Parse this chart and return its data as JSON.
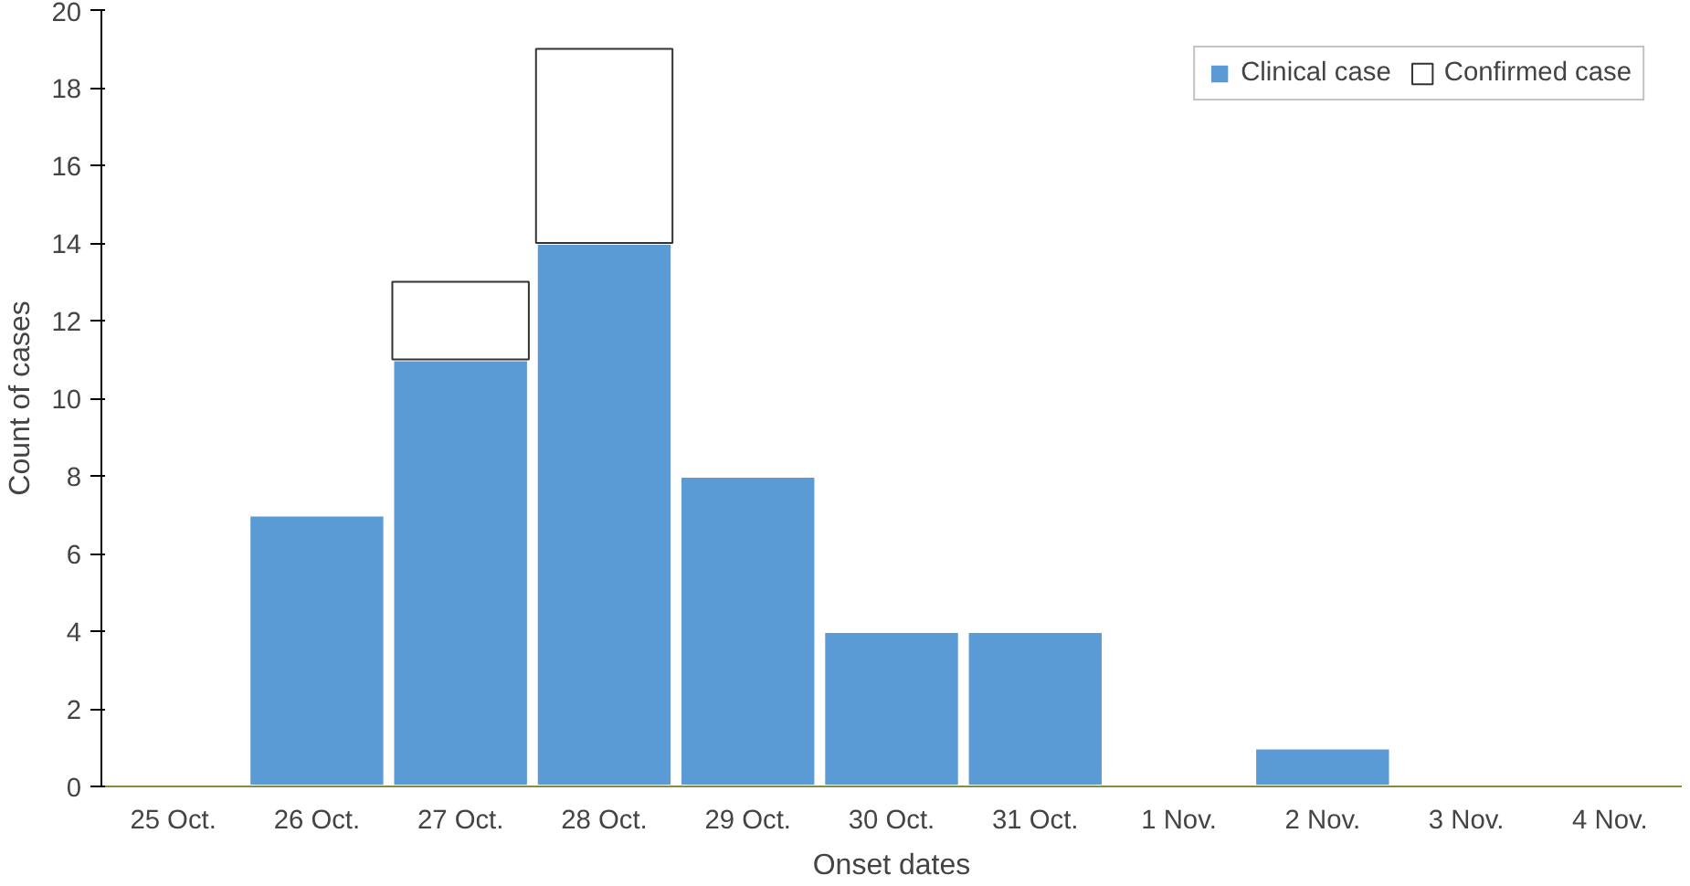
{
  "chart_data": {
    "type": "bar",
    "stacked": true,
    "xlabel": "Onset dates",
    "ylabel": "Count of cases",
    "categories": [
      "25 Oct.",
      "26 Oct.",
      "27 Oct.",
      "28 Oct.",
      "29 Oct.",
      "30 Oct.",
      "31 Oct.",
      "1 Nov.",
      "2 Nov.",
      "3 Nov.",
      "4 Nov."
    ],
    "series": [
      {
        "name": "Clinical case",
        "color": "#5b9bd5",
        "values": [
          0,
          7,
          11,
          14,
          8,
          4,
          4,
          0,
          1,
          0,
          0
        ]
      },
      {
        "name": "Confirmed case",
        "color": "#ffffff",
        "values": [
          0,
          0,
          2,
          5,
          0,
          0,
          0,
          0,
          0,
          0,
          0
        ]
      }
    ],
    "ylim": [
      0,
      20
    ],
    "yticks": [
      0,
      2,
      4,
      6,
      8,
      10,
      12,
      14,
      16,
      18,
      20
    ],
    "grid": false,
    "legend": "top right"
  }
}
